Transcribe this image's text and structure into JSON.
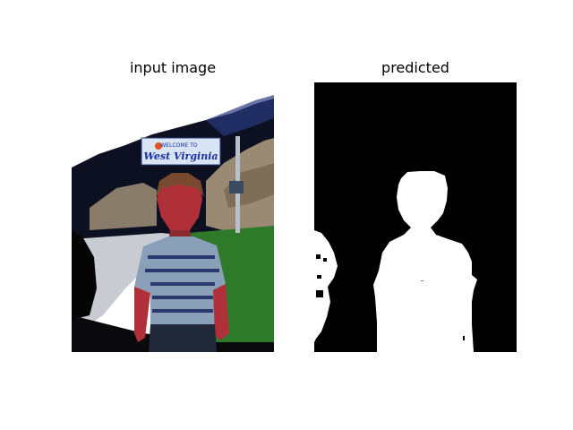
{
  "figure": {
    "left_title": "input image",
    "right_title": "predicted"
  },
  "photo": {
    "sign_top_text": "WELCOME TO",
    "sign_main_text": "West  Virginia",
    "colors": {
      "sky": "#ffffff",
      "forest": "#0c1020",
      "rock": "#9a8a74",
      "road": "#c8ccd2",
      "grass": "#2e7a2a",
      "sign": "#d8e4f4",
      "sign_text": "#1830a0",
      "skin": "#b0303a",
      "hair": "#7a4a30",
      "shirt": "#8aa0b8"
    }
  },
  "mask": {
    "background": "#000000",
    "foreground": "#ffffff"
  }
}
